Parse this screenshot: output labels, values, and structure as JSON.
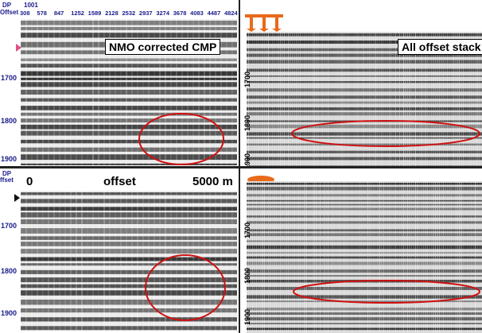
{
  "top_left": {
    "header_label_1": "DP",
    "header_label_2": "Offset",
    "cdp_value": "1001",
    "offset_ticks": [
      "308",
      "578",
      "847",
      "1252",
      "1589",
      "2128",
      "2532",
      "2937",
      "3274",
      "3678",
      "4083",
      "4487",
      "4824"
    ],
    "title": "NMO corrected CMP",
    "time_ticks": [
      "1700",
      "1800",
      "1900"
    ]
  },
  "top_right": {
    "title": "All offset stack",
    "time_ticks": [
      "1700",
      "1800",
      "1900"
    ]
  },
  "bottom_left": {
    "header_label_1": "DP",
    "header_label_2": "ffset",
    "axis_start": "0",
    "axis_mid": "offset",
    "axis_end": "5000 m",
    "time_ticks": [
      "1700",
      "1800",
      "1900"
    ]
  },
  "bottom_right": {
    "time_ticks": [
      "1700",
      "1800",
      "1900"
    ]
  },
  "colors": {
    "ellipse": "#d01010",
    "marker_pink": "#e0508a",
    "header_blue": "#1a1a8c",
    "derrick_orange": "#e86a1a",
    "derrick_yellow": "#f0d24a"
  }
}
